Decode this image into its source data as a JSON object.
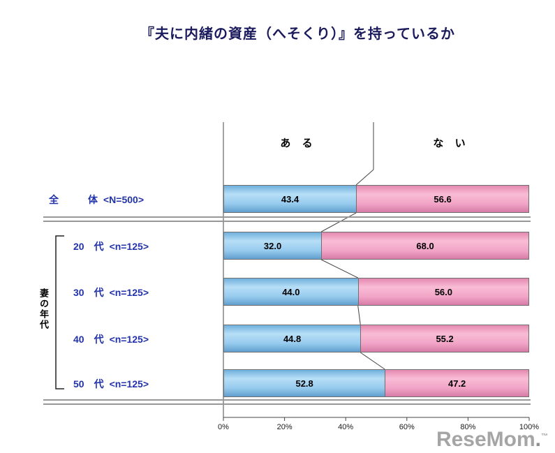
{
  "title": "『夫に内緒の資産（へそくり）』を持っているか",
  "header": {
    "aru": "あ る",
    "nai": "な い"
  },
  "watermark": {
    "text": "ReseMom",
    "dot": ".",
    "tm": "™"
  },
  "chart_data": {
    "type": "bar",
    "subtype": "horizontal-stacked-100percent",
    "title": "『夫に内緒の資産（へそくり）』を持っているか",
    "group_label": "妻の年代",
    "series": [
      {
        "name": "ある",
        "color": "#92c8ea",
        "values": [
          43.4,
          32.0,
          44.0,
          44.8,
          52.8
        ]
      },
      {
        "name": "ない",
        "color": "#f2a3c6",
        "values": [
          56.6,
          68.0,
          56.0,
          55.2,
          47.2
        ]
      }
    ],
    "rows": [
      {
        "label": "全　　　体",
        "sample": "<N=500>",
        "aru": "43.4",
        "nai": "56.6",
        "in_group": false
      },
      {
        "label": "20　代",
        "sample": "<n=125>",
        "aru": "32.0",
        "nai": "68.0",
        "in_group": true
      },
      {
        "label": "30　代",
        "sample": "<n=125>",
        "aru": "44.0",
        "nai": "56.0",
        "in_group": true
      },
      {
        "label": "40　代",
        "sample": "<n=125>",
        "aru": "44.8",
        "nai": "55.2",
        "in_group": true
      },
      {
        "label": "50　代",
        "sample": "<n=125>",
        "aru": "52.8",
        "nai": "47.2",
        "in_group": true
      }
    ],
    "x_ticks": [
      "0%",
      "20%",
      "40%",
      "60%",
      "80%",
      "100%"
    ],
    "xlim": [
      0,
      100
    ],
    "legend_position": "top-inside",
    "grid": false
  }
}
